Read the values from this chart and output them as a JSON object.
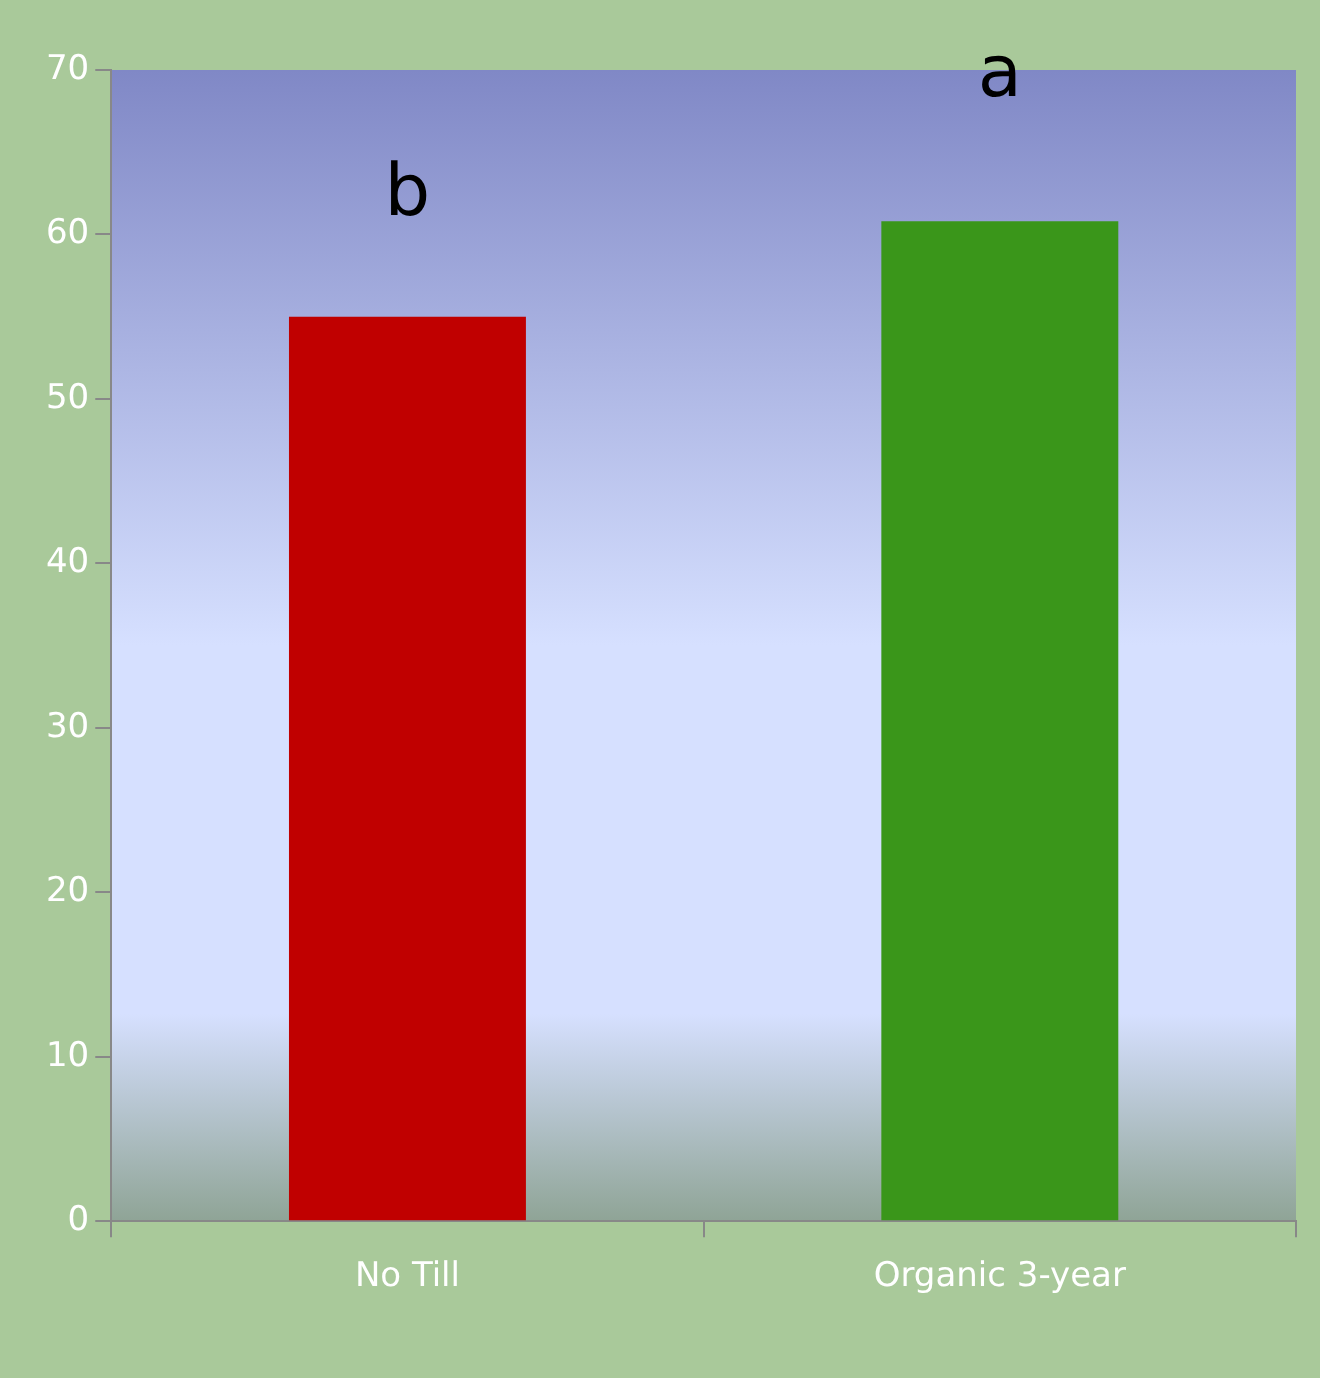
{
  "chart_data": {
    "type": "bar",
    "categories": [
      "No Till",
      "Organic 3-year"
    ],
    "colors": [
      "#c00000",
      "#3a961a"
    ],
    "values": [
      55,
      60.8
    ],
    "ylim": [
      0,
      70
    ],
    "yticks": [
      0,
      10,
      20,
      30,
      40,
      50,
      60,
      70
    ],
    "grid": false,
    "legend": false,
    "annotations": [
      "b",
      "a"
    ]
  }
}
